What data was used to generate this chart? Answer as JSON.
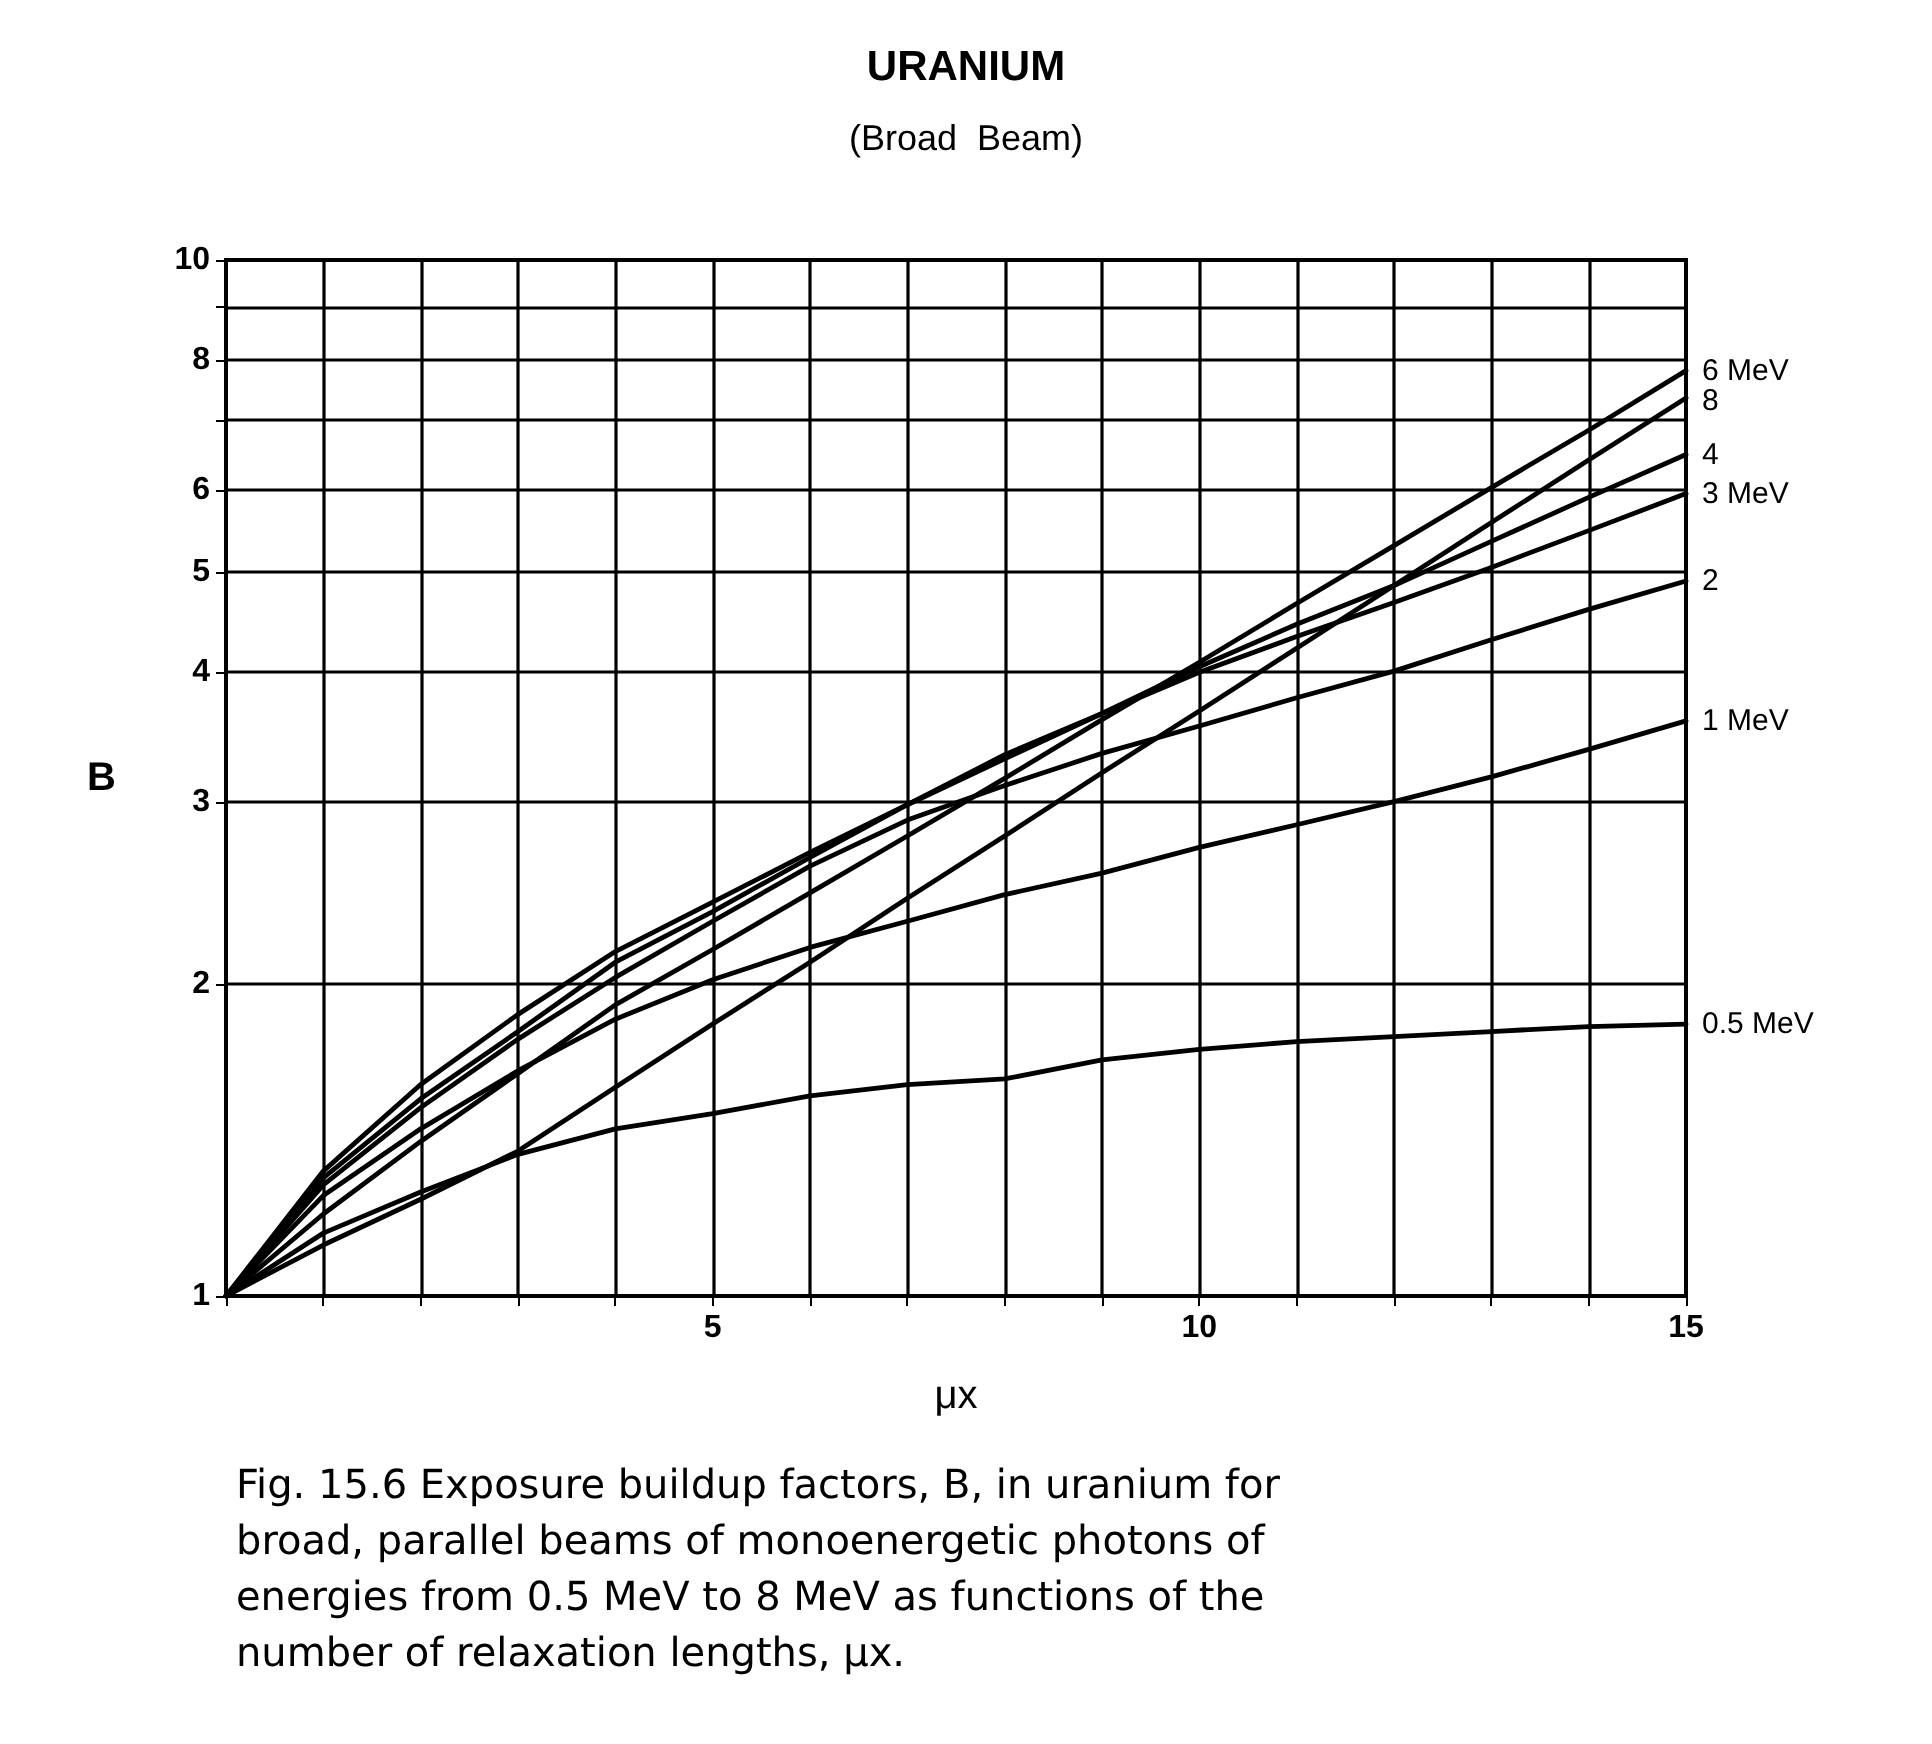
{
  "chart_data": {
    "type": "line",
    "title": "URANIUM",
    "subtitle": "(Broad  Beam)",
    "xlabel": "μx",
    "ylabel": "B",
    "annotations": [
      "Fig. 15.6 Exposure buildup factors, B, in uranium for broad, parallel beams of monoenergetic photons of energies from 0.5 MeV to 8 MeV as functions of the number of relaxation lengths, μx."
    ],
    "x": [
      0,
      1,
      2,
      3,
      4,
      5,
      6,
      7,
      8,
      9,
      10,
      11,
      12,
      13,
      14,
      15
    ],
    "series": [
      {
        "name": "6 MeV",
        "color": "#000000",
        "values": [
          1,
          1.2,
          1.41,
          1.64,
          1.91,
          2.16,
          2.45,
          2.78,
          3.16,
          3.6,
          4.09,
          4.66,
          5.3,
          6.03,
          6.85,
          7.82
        ]
      },
      {
        "name": "8",
        "color": "#000000",
        "values": [
          1,
          1.12,
          1.24,
          1.38,
          1.59,
          1.83,
          2.1,
          2.42,
          2.78,
          3.2,
          3.67,
          4.22,
          4.85,
          5.58,
          6.41,
          7.36
        ]
      },
      {
        "name": "4",
        "color": "#000000",
        "values": [
          1,
          1.3,
          1.55,
          1.8,
          2.1,
          2.35,
          2.65,
          2.98,
          3.3,
          3.65,
          4.05,
          4.45,
          4.85,
          5.35,
          5.9,
          6.49
        ]
      },
      {
        "name": "3 MeV",
        "color": "#000000",
        "values": [
          1,
          1.32,
          1.6,
          1.87,
          2.15,
          2.4,
          2.68,
          2.98,
          3.33,
          3.65,
          4.0,
          4.33,
          4.67,
          5.05,
          5.48,
          5.95
        ]
      },
      {
        "name": "2",
        "color": "#000000",
        "values": [
          1,
          1.28,
          1.52,
          1.77,
          2.03,
          2.3,
          2.6,
          2.88,
          3.11,
          3.34,
          3.55,
          3.78,
          4.01,
          4.3,
          4.6,
          4.9
        ]
      },
      {
        "name": "1 MeV",
        "color": "#000000",
        "values": [
          1,
          1.25,
          1.45,
          1.65,
          1.85,
          2.02,
          2.17,
          2.3,
          2.44,
          2.56,
          2.71,
          2.85,
          3.0,
          3.17,
          3.37,
          3.59
        ]
      },
      {
        "name": "0.5 MeV",
        "color": "#000000",
        "values": [
          1,
          1.15,
          1.26,
          1.37,
          1.45,
          1.5,
          1.56,
          1.6,
          1.62,
          1.69,
          1.73,
          1.76,
          1.78,
          1.8,
          1.82,
          1.83
        ]
      }
    ],
    "xlim": [
      0,
      15
    ],
    "xticks": [
      {
        "value": 0,
        "label": null
      },
      {
        "value": 1,
        "label": null
      },
      {
        "value": 2,
        "label": null
      },
      {
        "value": 3,
        "label": null
      },
      {
        "value": 4,
        "label": null
      },
      5,
      {
        "value": 6,
        "label": null
      },
      {
        "value": 7,
        "label": null
      },
      {
        "value": 8,
        "label": null
      },
      {
        "value": 9,
        "label": null
      },
      10,
      {
        "value": 11,
        "label": null
      },
      {
        "value": 12,
        "label": null
      },
      {
        "value": 13,
        "label": null
      },
      {
        "value": 14,
        "label": null
      },
      15
    ],
    "ylim": [
      1,
      10
    ],
    "yticks": [
      1,
      2,
      3,
      4,
      5,
      6,
      {
        "value": 7,
        "label": null
      },
      8,
      {
        "value": 9,
        "label": null
      },
      10
    ],
    "log": true,
    "grid": true,
    "marker": "none",
    "line_style": "solid"
  }
}
